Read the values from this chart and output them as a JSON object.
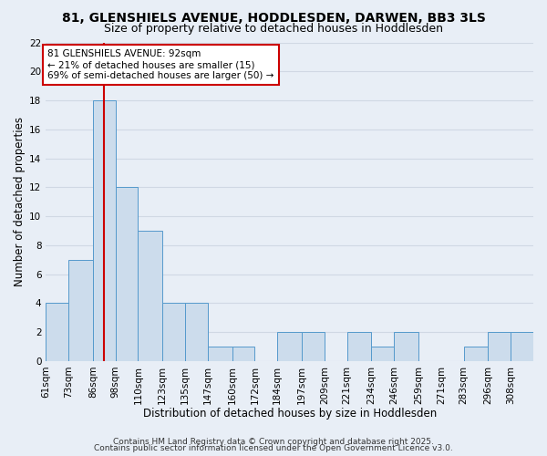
{
  "title": "81, GLENSHIELS AVENUE, HODDLESDEN, DARWEN, BB3 3LS",
  "subtitle": "Size of property relative to detached houses in Hoddlesden",
  "xlabel": "Distribution of detached houses by size in Hoddlesden",
  "ylabel": "Number of detached properties",
  "bin_labels": [
    "61sqm",
    "73sqm",
    "86sqm",
    "98sqm",
    "110sqm",
    "123sqm",
    "135sqm",
    "147sqm",
    "160sqm",
    "172sqm",
    "184sqm",
    "197sqm",
    "209sqm",
    "221sqm",
    "234sqm",
    "246sqm",
    "259sqm",
    "271sqm",
    "283sqm",
    "296sqm",
    "308sqm"
  ],
  "bin_edges": [
    61,
    73,
    86,
    98,
    110,
    123,
    135,
    147,
    160,
    172,
    184,
    197,
    209,
    221,
    234,
    246,
    259,
    271,
    283,
    296,
    308
  ],
  "counts": [
    4,
    7,
    18,
    12,
    9,
    4,
    4,
    1,
    1,
    0,
    2,
    2,
    0,
    2,
    1,
    2,
    0,
    0,
    1,
    2,
    2
  ],
  "bar_color": "#ccdcec",
  "bar_edge_color": "#5599cc",
  "property_size": 92,
  "vline_color": "#cc0000",
  "annotation_line1": "81 GLENSHIELS AVENUE: 92sqm",
  "annotation_line2": "← 21% of detached houses are smaller (15)",
  "annotation_line3": "69% of semi-detached houses are larger (50) →",
  "annotation_box_color": "#ffffff",
  "annotation_box_edge": "#cc0000",
  "ylim": [
    0,
    22
  ],
  "yticks": [
    0,
    2,
    4,
    6,
    8,
    10,
    12,
    14,
    16,
    18,
    20,
    22
  ],
  "footer1": "Contains HM Land Registry data © Crown copyright and database right 2025.",
  "footer2": "Contains public sector information licensed under the Open Government Licence v3.0.",
  "background_color": "#e8eef6",
  "grid_color": "#d0d8e4",
  "title_fontsize": 10,
  "subtitle_fontsize": 9,
  "label_fontsize": 8.5,
  "tick_fontsize": 7.5,
  "annotation_fontsize": 7.5,
  "footer_fontsize": 6.5
}
